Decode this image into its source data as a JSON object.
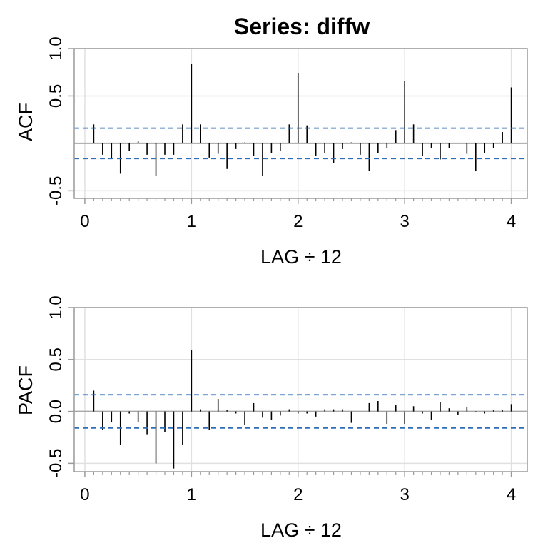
{
  "title": "Series:  diffw",
  "colors": {
    "grid": "#e0e0e0",
    "box": "#9a9a9a",
    "zero": "#a8a8a8",
    "bound": "#2e6eb8",
    "bar": "#000000"
  },
  "chart_data": [
    {
      "type": "bar",
      "name": "acf",
      "ylabel": "ACF",
      "xlabel": "LAG ÷ 12",
      "xlim": [
        -0.1,
        4.15
      ],
      "ylim": [
        -0.58,
        1.0
      ],
      "xticks": [
        "0",
        "1",
        "2",
        "3",
        "4"
      ],
      "yticks": [
        "-0.5",
        "0.5",
        "1.0"
      ],
      "ytick_values": [
        -0.5,
        0.5,
        1.0
      ],
      "grid": true,
      "bound": 0.16,
      "x": [
        0.0833,
        0.1667,
        0.25,
        0.3333,
        0.4167,
        0.5,
        0.5833,
        0.6667,
        0.75,
        0.8333,
        0.9167,
        1.0,
        1.0833,
        1.1667,
        1.25,
        1.3333,
        1.4167,
        1.5,
        1.5833,
        1.6667,
        1.75,
        1.8333,
        1.9167,
        2.0,
        2.0833,
        2.1667,
        2.25,
        2.3333,
        2.4167,
        2.5,
        2.5833,
        2.6667,
        2.75,
        2.8333,
        2.9167,
        3.0,
        3.0833,
        3.1667,
        3.25,
        3.3333,
        3.4167,
        3.5,
        3.5833,
        3.6667,
        3.75,
        3.8333,
        3.9167,
        4.0
      ],
      "values": [
        0.2,
        -0.12,
        -0.16,
        -0.32,
        -0.08,
        0.02,
        -0.12,
        -0.34,
        -0.12,
        -0.12,
        0.2,
        0.84,
        0.2,
        -0.15,
        -0.11,
        -0.27,
        -0.06,
        0.01,
        -0.13,
        -0.34,
        -0.1,
        -0.08,
        0.2,
        0.74,
        0.19,
        -0.13,
        -0.1,
        -0.21,
        -0.06,
        0.01,
        -0.12,
        -0.29,
        -0.1,
        -0.05,
        0.14,
        0.66,
        0.2,
        -0.13,
        -0.05,
        -0.17,
        -0.05,
        0.0,
        -0.11,
        -0.29,
        -0.1,
        -0.05,
        0.12,
        0.59
      ]
    },
    {
      "type": "bar",
      "name": "pacf",
      "ylabel": "PACF",
      "xlabel": "LAG ÷ 12",
      "xlim": [
        -0.1,
        4.15
      ],
      "ylim": [
        -0.58,
        1.0
      ],
      "xticks": [
        "0",
        "1",
        "2",
        "3",
        "4"
      ],
      "yticks": [
        "-0.5",
        "0.0",
        "0.5",
        "1.0"
      ],
      "ytick_values": [
        -0.5,
        0.0,
        0.5,
        1.0
      ],
      "grid": true,
      "bound": 0.16,
      "x": [
        0.0833,
        0.1667,
        0.25,
        0.3333,
        0.4167,
        0.5,
        0.5833,
        0.6667,
        0.75,
        0.8333,
        0.9167,
        1.0,
        1.0833,
        1.1667,
        1.25,
        1.3333,
        1.4167,
        1.5,
        1.5833,
        1.6667,
        1.75,
        1.8333,
        1.9167,
        2.0,
        2.0833,
        2.1667,
        2.25,
        2.3333,
        2.4167,
        2.5,
        2.5833,
        2.6667,
        2.75,
        2.8333,
        2.9167,
        3.0,
        3.0833,
        3.1667,
        3.25,
        3.3333,
        3.4167,
        3.5,
        3.5833,
        3.6667,
        3.75,
        3.8333,
        3.9167,
        4.0
      ],
      "values": [
        0.2,
        -0.18,
        -0.1,
        -0.32,
        -0.02,
        -0.1,
        -0.22,
        -0.5,
        -0.2,
        -0.55,
        -0.32,
        0.59,
        0.02,
        -0.18,
        0.12,
        0.01,
        -0.02,
        -0.13,
        0.08,
        -0.06,
        -0.08,
        -0.04,
        0.02,
        -0.02,
        -0.02,
        -0.05,
        0.02,
        0.02,
        0.02,
        -0.11,
        0.0,
        0.08,
        0.1,
        -0.12,
        0.06,
        -0.12,
        0.05,
        -0.02,
        -0.08,
        0.09,
        0.03,
        -0.03,
        0.04,
        -0.01,
        -0.02,
        0.01,
        0.01,
        0.07
      ]
    }
  ]
}
